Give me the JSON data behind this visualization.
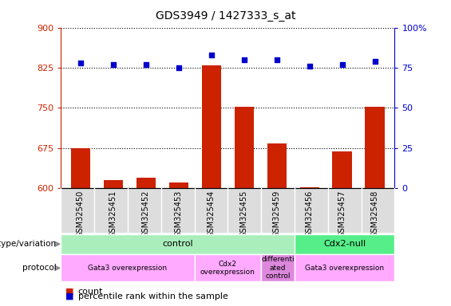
{
  "title": "GDS3949 / 1427333_s_at",
  "samples": [
    "GSM325450",
    "GSM325451",
    "GSM325452",
    "GSM325453",
    "GSM325454",
    "GSM325455",
    "GSM325459",
    "GSM325456",
    "GSM325457",
    "GSM325458"
  ],
  "counts": [
    675,
    615,
    620,
    610,
    830,
    752,
    683,
    601,
    668,
    752
  ],
  "percentile_ranks": [
    78,
    77,
    77,
    75,
    83,
    80,
    80,
    76,
    77,
    79
  ],
  "ylim_left": [
    600,
    900
  ],
  "ylim_right": [
    0,
    100
  ],
  "yticks_left": [
    600,
    675,
    750,
    825,
    900
  ],
  "yticks_right": [
    0,
    25,
    50,
    75,
    100
  ],
  "ytick_right_labels": [
    "0",
    "25",
    "50",
    "75",
    "100%"
  ],
  "bar_color": "#cc2200",
  "dot_color": "#0000cc",
  "genotype_groups": [
    {
      "label": "control",
      "start": 0,
      "end": 7,
      "color": "#aaeebb"
    },
    {
      "label": "Cdx2-null",
      "start": 7,
      "end": 10,
      "color": "#55ee88"
    }
  ],
  "protocol_groups": [
    {
      "label": "Gata3 overexpression",
      "start": 0,
      "end": 4,
      "color": "#ffaaff"
    },
    {
      "label": "Cdx2\noverexpression",
      "start": 4,
      "end": 6,
      "color": "#ffaaff"
    },
    {
      "label": "differenti\nated\ncontrol",
      "start": 6,
      "end": 7,
      "color": "#dd88dd"
    },
    {
      "label": "Gata3 overexpression",
      "start": 7,
      "end": 10,
      "color": "#ffaaff"
    }
  ],
  "left_axis_color": "#cc2200",
  "right_axis_color": "#0000cc",
  "plot_bg_color": "#ffffff",
  "legend_count_color": "#cc2200",
  "legend_pct_color": "#0000cc"
}
